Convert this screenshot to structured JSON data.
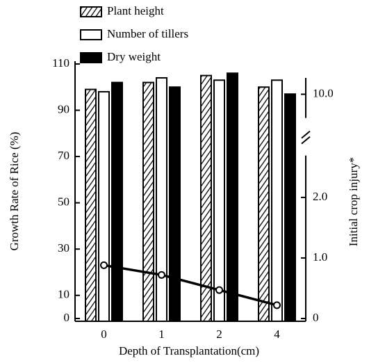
{
  "chart_data": {
    "type": "bar",
    "categories": [
      "0",
      "1",
      "2",
      "4"
    ],
    "series": [
      {
        "name": "Plant height",
        "color": "#000000",
        "pattern": "hatch",
        "values": [
          99,
          102,
          105,
          100
        ]
      },
      {
        "name": "Number of tillers",
        "color": "#000000",
        "pattern": "open",
        "values": [
          98,
          104,
          103,
          103
        ]
      },
      {
        "name": "Dry weight",
        "color": "#000000",
        "pattern": "solid",
        "values": [
          102,
          100,
          106,
          97
        ]
      }
    ],
    "line": {
      "axis": "y2",
      "color": "#000000",
      "values": [
        0.88,
        0.72,
        0.47,
        0.22
      ]
    },
    "ylabel": "Growth Rate of Rice (%)",
    "y2label": "Initial crop injury*",
    "xlabel": "Depth of Transplantation(cm)",
    "ylim": [
      0,
      110
    ],
    "yticks": [
      0,
      10,
      30,
      50,
      70,
      90,
      110
    ],
    "y2lim": [
      0,
      10.5
    ],
    "y2break": [
      2.6,
      9.7
    ],
    "y2ticks": [
      0,
      {
        "value": 1,
        "label": "1.0"
      },
      {
        "value": 2,
        "label": "2.0"
      },
      {
        "value": 10,
        "label": "10.0"
      }
    ],
    "legend": "top-left"
  }
}
